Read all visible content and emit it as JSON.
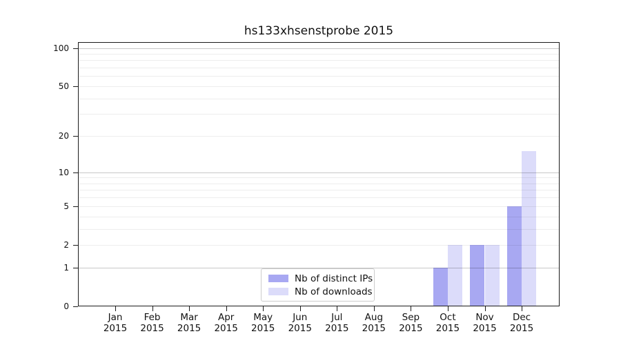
{
  "chart_data": {
    "type": "bar",
    "title": "hs133xhsenstprobe 2015",
    "x_axis": {
      "categories": [
        "Jan",
        "Feb",
        "Mar",
        "Apr",
        "May",
        "Jun",
        "Jul",
        "Aug",
        "Sep",
        "Oct",
        "Nov",
        "Dec"
      ],
      "year_label": "2015"
    },
    "y_axis": {
      "scale": "log1p",
      "range": [
        0,
        100
      ],
      "ticks": [
        0,
        1,
        2,
        5,
        10,
        20,
        50,
        100
      ],
      "major_gridlines": [
        1,
        10,
        100
      ],
      "minor_gridlines": [
        2,
        3,
        4,
        5,
        6,
        7,
        8,
        9,
        20,
        30,
        40,
        50,
        60,
        70,
        80,
        90
      ],
      "grid": "on"
    },
    "series": [
      {
        "name": "Nb of distinct IPs",
        "color": "#a8a8f2",
        "values": [
          0,
          0,
          0,
          0,
          0,
          0,
          0,
          0,
          0,
          1,
          2,
          5
        ]
      },
      {
        "name": "Nb of downloads",
        "color": "#dcdcfa",
        "values": [
          0,
          0,
          0,
          0,
          0,
          0,
          0,
          0,
          0,
          2,
          2,
          15
        ]
      }
    ],
    "legend": {
      "position": "bottom-center-inside",
      "entries": [
        "Nb of distinct IPs",
        "Nb of downloads"
      ]
    }
  },
  "colors": {
    "spine": "#1a1a1a",
    "title_text": "#111111",
    "tick_text": "#111111",
    "legend_border": "#cccccc"
  }
}
